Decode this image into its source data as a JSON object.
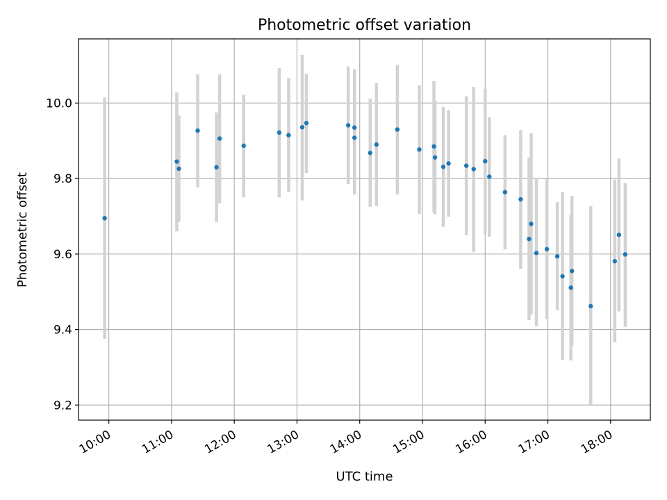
{
  "chart_data": {
    "type": "scatter",
    "title": "Photometric offset variation",
    "xlabel": "UTC time",
    "ylabel": "Photometric offset",
    "xlim": [
      "09:31",
      "18:38"
    ],
    "ylim": [
      9.16,
      10.17
    ],
    "grid": true,
    "x_ticks": [
      "10:00",
      "11:00",
      "12:00",
      "13:00",
      "14:00",
      "15:00",
      "16:00",
      "17:00",
      "18:00"
    ],
    "y_ticks": [
      "9.2",
      "9.4",
      "9.6",
      "9.8",
      "10.0"
    ],
    "colors": {
      "point": "#1f77b4",
      "errorbar": "#d3d3d3",
      "grid": "#b0b0b0"
    },
    "points": [
      {
        "x": "09:56",
        "y": 9.695,
        "ylo": 9.375,
        "yhi": 10.015
      },
      {
        "x": "11:05",
        "y": 9.845,
        "ylo": 9.66,
        "yhi": 10.028
      },
      {
        "x": "11:07",
        "y": 9.826,
        "ylo": 9.685,
        "yhi": 9.967
      },
      {
        "x": "11:25",
        "y": 9.927,
        "ylo": 9.777,
        "yhi": 10.076
      },
      {
        "x": "11:43",
        "y": 9.83,
        "ylo": 9.685,
        "yhi": 9.975
      },
      {
        "x": "11:46",
        "y": 9.906,
        "ylo": 9.735,
        "yhi": 10.076
      },
      {
        "x": "12:09",
        "y": 9.887,
        "ylo": 9.75,
        "yhi": 10.022
      },
      {
        "x": "12:43",
        "y": 9.922,
        "ylo": 9.75,
        "yhi": 10.093
      },
      {
        "x": "12:52",
        "y": 9.915,
        "ylo": 9.765,
        "yhi": 10.066
      },
      {
        "x": "13:05",
        "y": 9.936,
        "ylo": 9.742,
        "yhi": 10.128
      },
      {
        "x": "13:09",
        "y": 9.947,
        "ylo": 9.815,
        "yhi": 10.078
      },
      {
        "x": "13:49",
        "y": 9.941,
        "ylo": 9.785,
        "yhi": 10.097
      },
      {
        "x": "13:55",
        "y": 9.935,
        "ylo": 9.78,
        "yhi": 10.09
      },
      {
        "x": "13:55",
        "y": 9.908,
        "ylo": 9.758,
        "yhi": 10.058
      },
      {
        "x": "14:10",
        "y": 9.868,
        "ylo": 9.725,
        "yhi": 10.012
      },
      {
        "x": "14:16",
        "y": 9.89,
        "ylo": 9.727,
        "yhi": 10.053
      },
      {
        "x": "14:36",
        "y": 9.93,
        "ylo": 9.758,
        "yhi": 10.101
      },
      {
        "x": "14:57",
        "y": 9.877,
        "ylo": 9.706,
        "yhi": 10.047
      },
      {
        "x": "15:11",
        "y": 9.885,
        "ylo": 9.71,
        "yhi": 10.058
      },
      {
        "x": "15:12",
        "y": 9.856,
        "ylo": 9.705,
        "yhi": 10.007
      },
      {
        "x": "15:20",
        "y": 9.831,
        "ylo": 9.672,
        "yhi": 9.99
      },
      {
        "x": "15:25",
        "y": 9.84,
        "ylo": 9.699,
        "yhi": 9.981
      },
      {
        "x": "15:42",
        "y": 9.834,
        "ylo": 9.65,
        "yhi": 10.018
      },
      {
        "x": "15:49",
        "y": 9.825,
        "ylo": 9.606,
        "yhi": 10.043
      },
      {
        "x": "16:00",
        "y": 9.846,
        "ylo": 9.653,
        "yhi": 10.038
      },
      {
        "x": "16:04",
        "y": 9.805,
        "ylo": 9.646,
        "yhi": 9.963
      },
      {
        "x": "16:19",
        "y": 9.764,
        "ylo": 9.612,
        "yhi": 9.915
      },
      {
        "x": "16:34",
        "y": 9.745,
        "ylo": 9.561,
        "yhi": 9.929
      },
      {
        "x": "16:42",
        "y": 9.64,
        "ylo": 9.425,
        "yhi": 9.855
      },
      {
        "x": "16:44",
        "y": 9.68,
        "ylo": 9.44,
        "yhi": 9.92
      },
      {
        "x": "16:49",
        "y": 9.603,
        "ylo": 9.409,
        "yhi": 9.798
      },
      {
        "x": "16:59",
        "y": 9.613,
        "ylo": 9.428,
        "yhi": 9.798
      },
      {
        "x": "17:09",
        "y": 9.594,
        "ylo": 9.451,
        "yhi": 9.738
      },
      {
        "x": "17:14",
        "y": 9.541,
        "ylo": 9.319,
        "yhi": 9.764
      },
      {
        "x": "17:22",
        "y": 9.511,
        "ylo": 9.318,
        "yhi": 9.704
      },
      {
        "x": "17:23",
        "y": 9.555,
        "ylo": 9.357,
        "yhi": 9.754
      },
      {
        "x": "17:41",
        "y": 9.462,
        "ylo": 9.2,
        "yhi": 9.727
      },
      {
        "x": "18:04",
        "y": 9.581,
        "ylo": 9.366,
        "yhi": 9.797
      },
      {
        "x": "18:08",
        "y": 9.651,
        "ylo": 9.448,
        "yhi": 9.853
      },
      {
        "x": "18:14",
        "y": 9.599,
        "ylo": 9.407,
        "yhi": 9.788
      }
    ]
  }
}
